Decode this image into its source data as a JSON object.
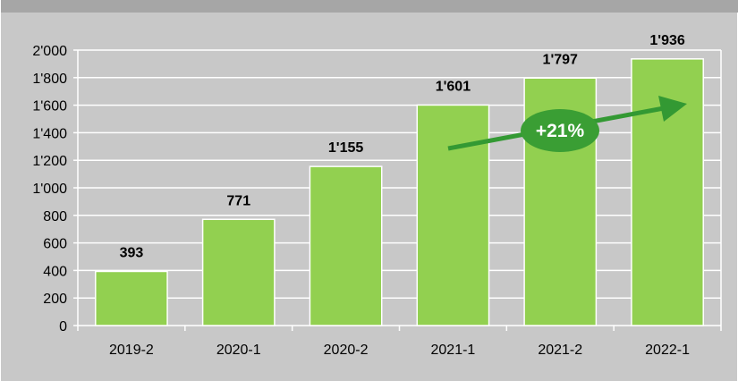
{
  "chart_data": {
    "type": "bar",
    "categories": [
      "2019-2",
      "2020-1",
      "2020-2",
      "2021-1",
      "2021-2",
      "2022-1"
    ],
    "values": [
      393,
      771,
      1155,
      1601,
      1797,
      1936
    ],
    "value_labels": [
      "393",
      "771",
      "1'155",
      "1'601",
      "1'797",
      "1'936"
    ],
    "ylim": [
      0,
      2000
    ],
    "yticks": [
      0,
      200,
      400,
      600,
      800,
      1000,
      1200,
      1400,
      1600,
      1800,
      2000
    ],
    "ytick_labels": [
      "0",
      "200",
      "400",
      "600",
      "800",
      "1'000",
      "1'200",
      "1'400",
      "1'600",
      "1'800",
      "2'000"
    ],
    "grid": true,
    "legend": "none",
    "annotation": {
      "text": "+21%"
    }
  },
  "colors": {
    "bar_fill": "#92d050",
    "bar_edge": "#ffffff",
    "grid": "#ffffff",
    "plot_bg": "#c8c8c8",
    "arrow": "#339933",
    "badge": "#3a9e34"
  }
}
